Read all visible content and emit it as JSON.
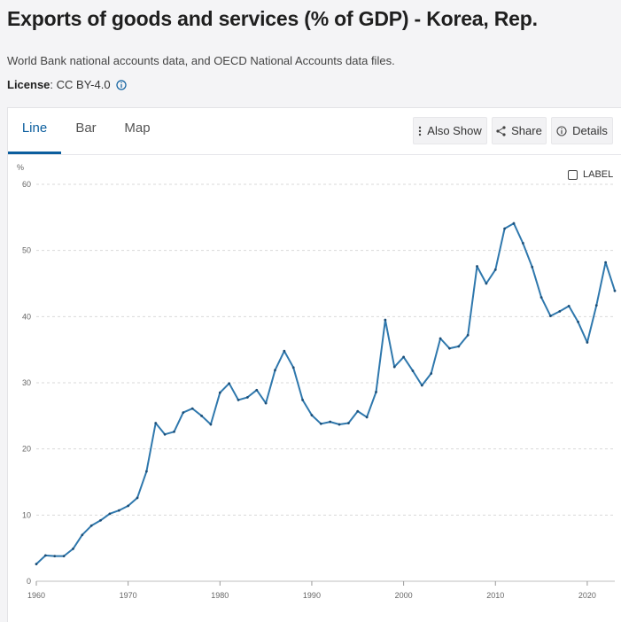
{
  "header": {
    "title": "Exports of goods and services (% of GDP) - Korea, Rep.",
    "subtitle": "World Bank national accounts data, and OECD National Accounts data files.",
    "license_label": "License",
    "license_value": " : CC BY-4.0"
  },
  "tabs": [
    {
      "label": "Line",
      "active": true
    },
    {
      "label": "Bar",
      "active": false
    },
    {
      "label": "Map",
      "active": false
    }
  ],
  "toolbar": {
    "also_show": "Also Show",
    "share": "Share",
    "details": "Details"
  },
  "label_toggle": "LABEL",
  "colors": {
    "accent": "#0b5e9e",
    "line": "#2f78ad",
    "grid": "#d9d9d9"
  },
  "chart_data": {
    "type": "line",
    "title": "Exports of goods and services (% of GDP) - Korea, Rep.",
    "ylabel": "%",
    "xlabel": "",
    "ylim": [
      0,
      60
    ],
    "xlim": [
      1960,
      2023
    ],
    "yticks": [
      0,
      10,
      20,
      30,
      40,
      50,
      60
    ],
    "xticks": [
      1960,
      1970,
      1980,
      1990,
      2000,
      2010,
      2020
    ],
    "grid": true,
    "series": [
      {
        "name": "Korea, Rep.",
        "x": [
          1960,
          1961,
          1962,
          1963,
          1964,
          1965,
          1966,
          1967,
          1968,
          1969,
          1970,
          1971,
          1972,
          1973,
          1974,
          1975,
          1976,
          1977,
          1978,
          1979,
          1980,
          1981,
          1982,
          1983,
          1984,
          1985,
          1986,
          1987,
          1988,
          1989,
          1990,
          1991,
          1992,
          1993,
          1994,
          1995,
          1996,
          1997,
          1998,
          1999,
          2000,
          2001,
          2002,
          2003,
          2004,
          2005,
          2006,
          2007,
          2008,
          2009,
          2010,
          2011,
          2012,
          2013,
          2014,
          2015,
          2016,
          2017,
          2018,
          2019,
          2020,
          2021,
          2022,
          2023
        ],
        "values": [
          2.6,
          3.9,
          3.8,
          3.8,
          4.9,
          7.0,
          8.4,
          9.2,
          10.2,
          10.7,
          11.4,
          12.6,
          16.6,
          23.9,
          22.2,
          22.6,
          25.5,
          26.1,
          25.0,
          23.7,
          28.5,
          29.9,
          27.4,
          27.8,
          28.9,
          26.9,
          31.9,
          34.8,
          32.3,
          27.4,
          25.1,
          23.8,
          24.1,
          23.7,
          23.9,
          25.7,
          24.8,
          28.6,
          39.5,
          32.4,
          33.9,
          31.8,
          29.6,
          31.4,
          36.7,
          35.2,
          35.5,
          37.2,
          47.6,
          45.0,
          47.1,
          53.3,
          54.1,
          51.1,
          47.5,
          42.9,
          40.1,
          40.8,
          41.6,
          39.2,
          36.1,
          41.7,
          48.2,
          43.9
        ]
      }
    ]
  }
}
